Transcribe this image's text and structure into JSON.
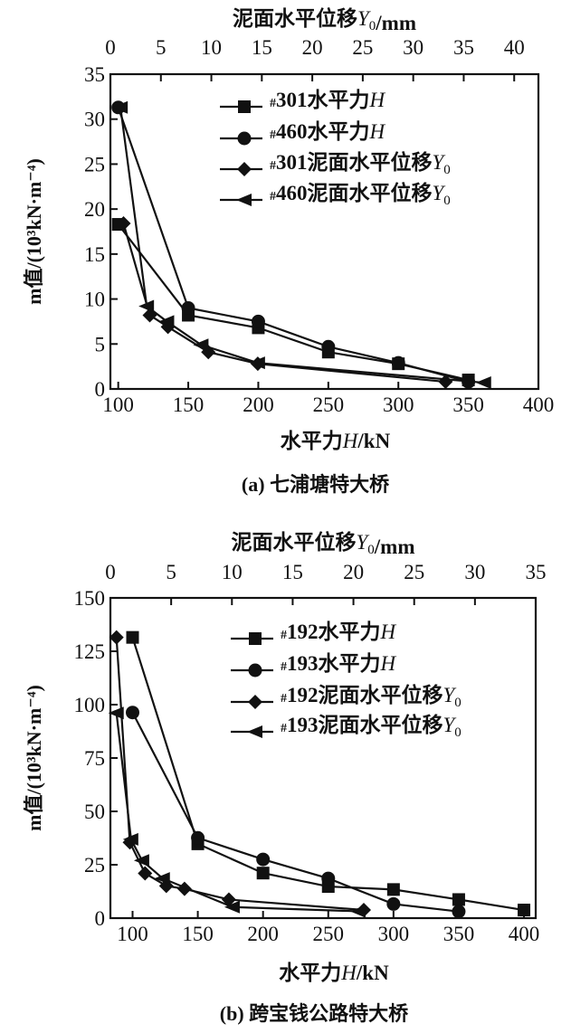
{
  "colors": {
    "ink": "#111111",
    "background": "#ffffff"
  },
  "chart_data": [
    {
      "type": "line",
      "caption": "(a) 七浦塘特大桥",
      "xlabel": "水平力H/kN",
      "x2label": "泥面水平位移Y0/mm",
      "ylabel": "m值/(10³kN·m⁻⁴)",
      "xlim": [
        94.4,
        400
      ],
      "xticks": [
        100,
        150,
        200,
        250,
        300,
        350,
        400
      ],
      "x2lim": [
        0,
        42.4
      ],
      "x2ticks": [
        0,
        5,
        10,
        15,
        20,
        25,
        30,
        35,
        40
      ],
      "ylim": [
        0,
        35
      ],
      "yticks": [
        0,
        5,
        10,
        15,
        20,
        25,
        30,
        35
      ],
      "legend_position": "top-right",
      "series": [
        {
          "name": "#301水平力H",
          "marker": "square",
          "axis": "bottom",
          "x": [
            100,
            150,
            200,
            250,
            300,
            350
          ],
          "y": [
            18.3,
            8.2,
            6.8,
            4.1,
            2.8,
            1.0
          ]
        },
        {
          "name": "#460水平力H",
          "marker": "circle",
          "axis": "bottom",
          "x": [
            100,
            150,
            200,
            250,
            300,
            350
          ],
          "y": [
            31.3,
            9.0,
            7.5,
            4.7,
            2.9,
            0.8
          ]
        },
        {
          "name": "#301泥面水平位移Y0",
          "marker": "diamond",
          "axis": "top",
          "x": [
            1.3,
            3.9,
            5.7,
            9.7,
            14.6,
            33.2
          ],
          "y": [
            18.4,
            8.2,
            6.9,
            4.1,
            2.8,
            0.8
          ]
        },
        {
          "name": "#460泥面水平位移Y0",
          "marker": "triangle-left",
          "axis": "top",
          "x": [
            1.0,
            3.6,
            5.6,
            9.0,
            14.6,
            37.0
          ],
          "y": [
            31.3,
            9.2,
            7.5,
            4.9,
            2.9,
            0.7
          ]
        }
      ]
    },
    {
      "type": "line",
      "caption": "(b) 跨宝钱公路特大桥",
      "xlabel": "水平力H/kN",
      "x2label": "泥面水平位移Y0/mm",
      "ylabel": "m值/(10³kN·m⁻⁴)",
      "xlim": [
        83,
        409
      ],
      "xticks": [
        100,
        150,
        200,
        250,
        300,
        350,
        400
      ],
      "x2lim": [
        0,
        35
      ],
      "x2ticks": [
        0,
        5,
        10,
        15,
        20,
        25,
        30,
        35
      ],
      "ylim": [
        0,
        150
      ],
      "yticks": [
        0,
        25,
        50,
        75,
        100,
        125,
        150
      ],
      "legend_position": "top-right",
      "series": [
        {
          "name": "#192水平力H",
          "marker": "square",
          "axis": "bottom",
          "x": [
            100,
            150,
            200,
            250,
            300,
            350,
            400
          ],
          "y": [
            131.5,
            34.8,
            21.1,
            14.8,
            13.4,
            8.7,
            3.8
          ]
        },
        {
          "name": "#193水平力H",
          "marker": "circle",
          "axis": "bottom",
          "x": [
            100,
            150,
            200,
            250,
            300,
            350
          ],
          "y": [
            96.3,
            37.6,
            27.5,
            18.6,
            6.6,
            3.1
          ]
        },
        {
          "name": "#192泥面水平位移Y0",
          "marker": "diamond",
          "axis": "top",
          "x": [
            0.5,
            1.6,
            2.85,
            4.6,
            6.1,
            9.75,
            20.85
          ],
          "y": [
            131.5,
            35.5,
            21.0,
            15.1,
            13.7,
            8.7,
            3.8
          ]
        },
        {
          "name": "#193泥面水平位移Y0",
          "marker": "triangle-left",
          "axis": "top",
          "x": [
            0.5,
            1.7,
            2.6,
            4.3,
            10.05,
            20.4
          ],
          "y": [
            96.1,
            36.9,
            27.0,
            18.6,
            5.2,
            3.2
          ]
        }
      ]
    }
  ]
}
